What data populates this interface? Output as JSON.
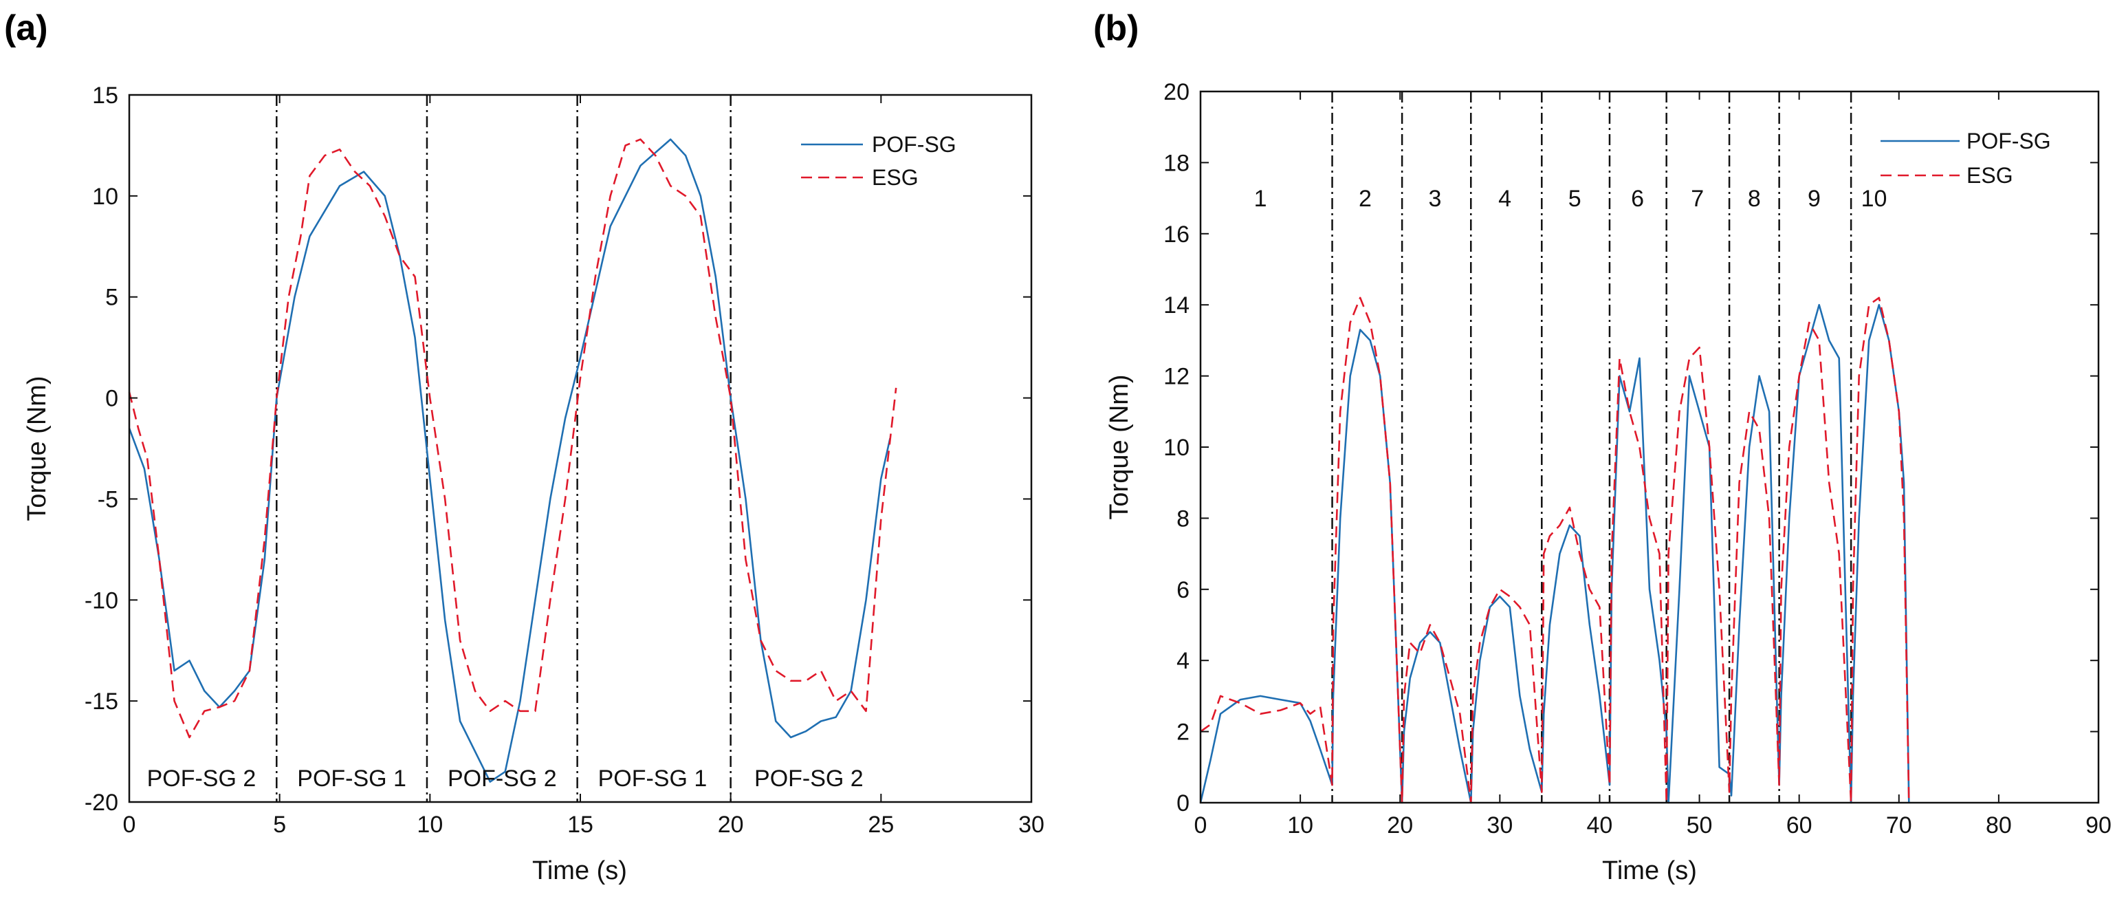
{
  "chart_data": [
    {
      "id": "a",
      "type": "line",
      "panel_label": "(a)",
      "xlabel": "Time (s)",
      "ylabel": "Torque (Nm)",
      "xlim": [
        0,
        30
      ],
      "ylim": [
        -20,
        15
      ],
      "xticks": [
        0,
        5,
        10,
        15,
        20,
        25,
        30
      ],
      "yticks": [
        -20,
        -15,
        -10,
        -5,
        0,
        5,
        10,
        15
      ],
      "legend": {
        "position": "top-right",
        "entries": [
          "POF-SG",
          "ESG"
        ]
      },
      "dividers": [
        4.9,
        9.9,
        14.9,
        20.0
      ],
      "segments": [
        {
          "label": "POF-SG 2",
          "x": 2.4
        },
        {
          "label": "POF-SG 1",
          "x": 7.4
        },
        {
          "label": "POF-SG 2",
          "x": 12.4
        },
        {
          "label": "POF-SG 1",
          "x": 17.4
        },
        {
          "label": "POF-SG 2",
          "x": 22.6
        }
      ],
      "segment_label_y": -18.8,
      "series": [
        {
          "name": "POF-SG",
          "style": "solid",
          "color": "#1f6fb2",
          "x": [
            0,
            0.5,
            1.0,
            1.5,
            2.0,
            2.5,
            3.0,
            3.5,
            4.0,
            4.5,
            4.9,
            5.5,
            6.0,
            7.0,
            7.8,
            8.5,
            9.0,
            9.5,
            10.0,
            10.5,
            11.0,
            12.0,
            12.5,
            13.0,
            13.5,
            14.0,
            14.5,
            15.0,
            16.0,
            17.0,
            18.0,
            18.5,
            19.0,
            19.5,
            20.0,
            20.5,
            21.0,
            21.5,
            22.0,
            22.5,
            23.0,
            23.5,
            24.0,
            24.5,
            25.0,
            25.3
          ],
          "y": [
            -1.5,
            -3.5,
            -8,
            -13.5,
            -13.0,
            -14.5,
            -15.3,
            -14.5,
            -13.5,
            -8,
            0,
            5,
            8,
            10.5,
            11.2,
            10,
            7,
            3,
            -4,
            -11,
            -16,
            -19,
            -18.5,
            -15,
            -10,
            -5,
            -1,
            2,
            8.5,
            11.5,
            12.8,
            12,
            10,
            6,
            0,
            -5,
            -12,
            -16,
            -16.8,
            -16.5,
            -16,
            -15.8,
            -14.5,
            -10,
            -4,
            -2
          ]
        },
        {
          "name": "ESG",
          "style": "dashed",
          "color": "#e0192a",
          "x": [
            0,
            0.3,
            0.6,
            1.0,
            1.5,
            2.0,
            2.5,
            3.0,
            3.5,
            4.0,
            4.5,
            4.9,
            5.3,
            5.7,
            6.0,
            6.5,
            7.0,
            7.5,
            8.0,
            8.5,
            9.0,
            9.5,
            10.0,
            10.5,
            11.0,
            11.5,
            12.0,
            12.5,
            13.0,
            13.5,
            14.0,
            14.5,
            15.0,
            15.5,
            16.0,
            16.5,
            17.0,
            17.5,
            18.0,
            18.5,
            19.0,
            19.5,
            20.0,
            20.5,
            21.0,
            21.5,
            22.0,
            22.5,
            23.0,
            23.5,
            24.0,
            24.5,
            25.0,
            25.5
          ],
          "y": [
            0.3,
            -1.5,
            -3,
            -8,
            -15,
            -16.8,
            -15.5,
            -15.3,
            -15,
            -13.5,
            -7,
            0,
            5,
            8,
            11,
            12,
            12.3,
            11.2,
            10.5,
            9,
            7,
            6,
            0,
            -5,
            -12,
            -14.5,
            -15.5,
            -15,
            -15.5,
            -15.5,
            -10,
            -5,
            1,
            6,
            10,
            12.5,
            12.8,
            12,
            10.5,
            10,
            9,
            4,
            0,
            -8,
            -12,
            -13.5,
            -14,
            -14,
            -13.5,
            -15,
            -14.5,
            -15.5,
            -6,
            0.5
          ]
        }
      ]
    },
    {
      "id": "b",
      "type": "line",
      "panel_label": "(b)",
      "xlabel": "Time (s)",
      "ylabel": "Torque (Nm)",
      "xlim": [
        0,
        90
      ],
      "ylim": [
        0,
        20
      ],
      "xticks": [
        0,
        10,
        20,
        30,
        40,
        50,
        60,
        70,
        80,
        90
      ],
      "yticks": [
        0,
        2,
        4,
        6,
        8,
        10,
        12,
        14,
        16,
        18,
        20
      ],
      "legend": {
        "position": "top-right",
        "entries": [
          "POF-SG",
          "ESG"
        ]
      },
      "dividers": [
        13.2,
        20.2,
        27.1,
        34.2,
        41.0,
        46.7,
        53.0,
        58.0,
        65.2
      ],
      "segments": [
        {
          "label": "1",
          "x": 6.0
        },
        {
          "label": "2",
          "x": 16.5
        },
        {
          "label": "3",
          "x": 23.5
        },
        {
          "label": "4",
          "x": 30.5
        },
        {
          "label": "5",
          "x": 37.5
        },
        {
          "label": "6",
          "x": 43.8
        },
        {
          "label": "7",
          "x": 49.8
        },
        {
          "label": "8",
          "x": 55.5
        },
        {
          "label": "9",
          "x": 61.5
        },
        {
          "label": "10",
          "x": 67.5
        }
      ],
      "segment_label_y": 17.0,
      "series": [
        {
          "name": "POF-SG",
          "style": "solid",
          "color": "#1f6fb2",
          "x": [
            0,
            1,
            2,
            4,
            6,
            8,
            10,
            11,
            12,
            13.2,
            13.3,
            14,
            15,
            16,
            17,
            18,
            19,
            20.2,
            20.4,
            21,
            22,
            23,
            24,
            25,
            26,
            27.1,
            27.3,
            28,
            29,
            30,
            31,
            32,
            33,
            34.2,
            34.4,
            35,
            36,
            37,
            38,
            39,
            40,
            41.0,
            41.2,
            42,
            43,
            44,
            45,
            46,
            46.7,
            46.9,
            48,
            49,
            50,
            51,
            52,
            53.0,
            53.2,
            54,
            55,
            56,
            57,
            58.0,
            58.2,
            59,
            60,
            61,
            62,
            63,
            64,
            65.2,
            65.4,
            66,
            67,
            68,
            69,
            70,
            70.5,
            71
          ],
          "y": [
            0,
            1.2,
            2.5,
            2.9,
            3.0,
            2.9,
            2.8,
            2.3,
            1.5,
            0.5,
            3,
            8,
            12,
            13.3,
            13,
            12,
            9,
            0,
            2,
            3.5,
            4.5,
            4.8,
            4.5,
            3,
            1.5,
            0,
            2,
            4,
            5.5,
            5.8,
            5.5,
            3,
            1.5,
            0.3,
            2.5,
            5,
            7,
            7.8,
            7.5,
            5,
            3,
            0.5,
            6,
            12,
            11,
            12.5,
            6,
            4,
            2,
            0,
            6,
            12,
            11,
            10,
            1,
            0.8,
            0.2,
            5,
            10,
            12,
            11,
            0.5,
            3,
            8,
            12,
            13,
            14,
            13,
            12.5,
            0,
            3,
            8,
            13,
            14,
            13,
            11,
            9,
            0
          ]
        },
        {
          "name": "ESG",
          "style": "dashed",
          "color": "#e0192a",
          "x": [
            0,
            1,
            2,
            4,
            6,
            8,
            10,
            11,
            12,
            13.2,
            13.3,
            14,
            15,
            16,
            17,
            18,
            19,
            20.2,
            20.4,
            21,
            22,
            23,
            24,
            25,
            26,
            27.1,
            27.3,
            28,
            29,
            30,
            31,
            32,
            33,
            34.2,
            34.4,
            35,
            36,
            37,
            38,
            39,
            40,
            41.0,
            41.2,
            42,
            43,
            44,
            45,
            46,
            46.7,
            46.9,
            48,
            49,
            50,
            51,
            52,
            53.0,
            53.2,
            54,
            55,
            56,
            57,
            58.0,
            58.2,
            59,
            60,
            61,
            62,
            63,
            64,
            65.2,
            65.4,
            66,
            67,
            68,
            69,
            70,
            70.5,
            71
          ],
          "y": [
            2,
            2.2,
            3.0,
            2.8,
            2.5,
            2.6,
            2.8,
            2.5,
            2.7,
            0.5,
            5,
            11,
            13.5,
            14.2,
            13.5,
            12,
            9,
            0,
            3,
            4.5,
            4.2,
            5,
            4.5,
            3.5,
            2.5,
            0,
            3,
            4.5,
            5.5,
            6,
            5.8,
            5.5,
            5,
            0.3,
            7,
            7.5,
            7.8,
            8.3,
            7,
            6,
            5.5,
            0.5,
            7,
            12.5,
            11,
            10,
            8,
            7,
            0,
            7,
            11,
            12.5,
            12.8,
            10,
            6,
            0.3,
            3,
            9,
            11,
            10.5,
            8,
            0.5,
            6,
            10,
            12,
            13.5,
            13,
            9,
            7,
            0,
            6,
            12,
            14,
            14.2,
            13,
            11,
            8,
            0
          ]
        }
      ]
    }
  ]
}
